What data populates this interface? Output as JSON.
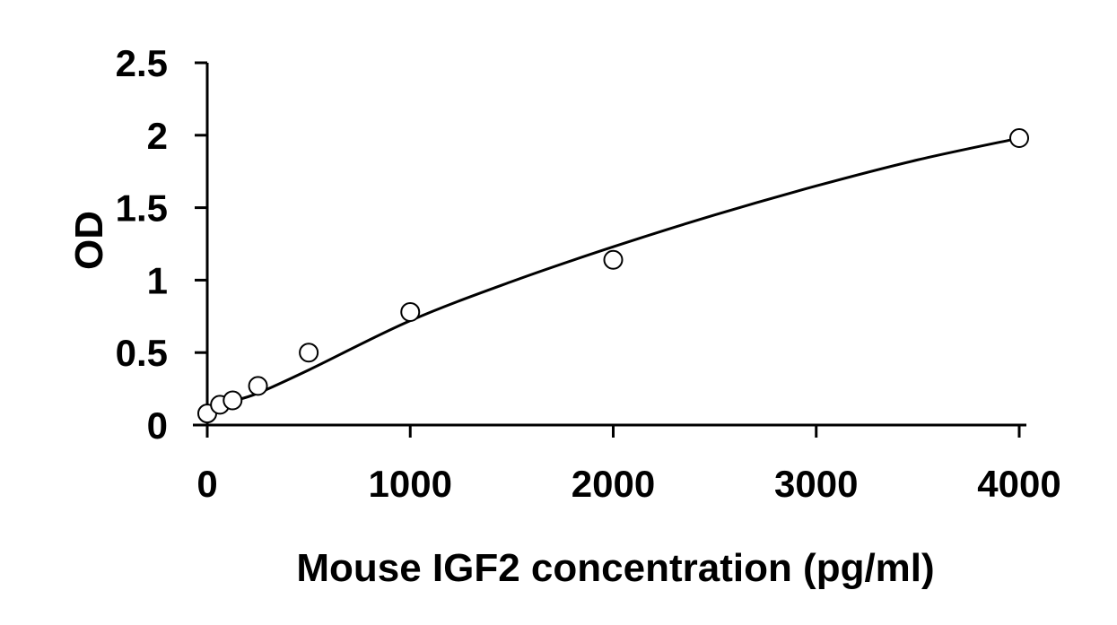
{
  "chart_data": {
    "type": "scatter",
    "title": "",
    "xlabel": "Mouse IGF2 concentration (pg/ml)",
    "ylabel": "OD",
    "xlim": [
      0,
      4000
    ],
    "ylim": [
      0,
      2.5
    ],
    "x_ticks": [
      "0",
      "1000",
      "2000",
      "3000",
      "4000"
    ],
    "y_ticks": [
      "0",
      "0.5",
      "1",
      "1.5",
      "2",
      "2.5"
    ],
    "grid": false,
    "legend": "none",
    "series": [
      {
        "marker": "open-circle",
        "x": [
          0,
          62.5,
          125,
          250,
          500,
          1000,
          2000,
          4000
        ],
        "y": [
          0.08,
          0.14,
          0.17,
          0.27,
          0.5,
          0.78,
          1.14,
          1.98
        ]
      }
    ],
    "fit_curve": {
      "x": [
        0,
        62.5,
        125,
        250,
        500,
        1000,
        1500,
        2000,
        2500,
        3000,
        3500,
        4000
      ],
      "y": [
        0.12,
        0.14,
        0.165,
        0.22,
        0.38,
        0.72,
        0.99,
        1.23,
        1.45,
        1.65,
        1.83,
        1.98
      ]
    },
    "colors": {
      "axis": "#000000",
      "marker_edge": "#000000",
      "marker_fill": "#ffffff",
      "curve": "#000000"
    }
  }
}
